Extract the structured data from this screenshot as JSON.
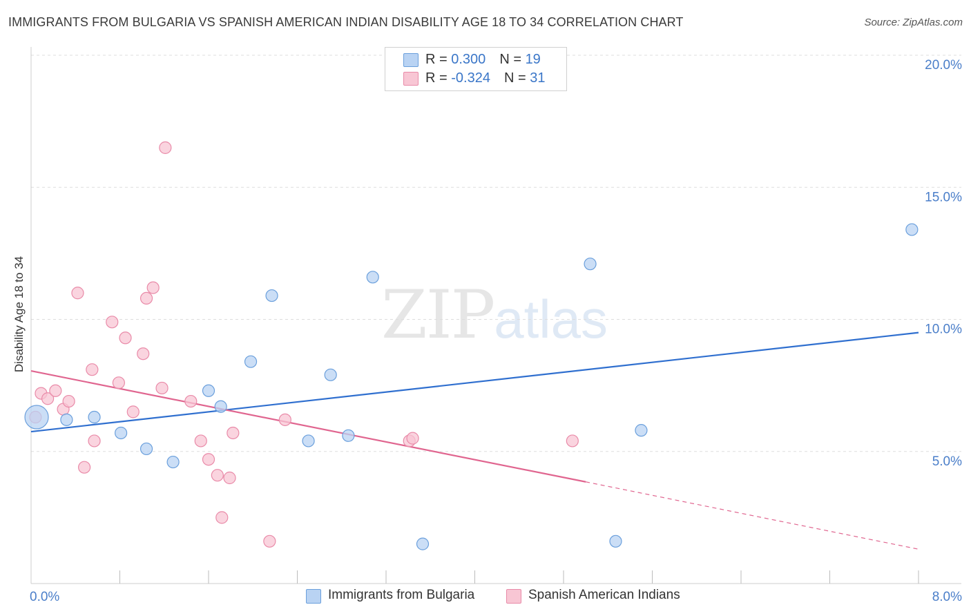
{
  "title": "IMMIGRANTS FROM BULGARIA VS SPANISH AMERICAN INDIAN DISABILITY AGE 18 TO 34 CORRELATION CHART",
  "source": "Source: ZipAtlas.com",
  "watermark": {
    "zip": "ZIP",
    "atlas": "atlas"
  },
  "legend": {
    "series1": {
      "r_label": "R = ",
      "r_value": "0.300",
      "n_label": "N = ",
      "n_value": "19"
    },
    "series2": {
      "r_label": "R = ",
      "r_value": "-0.324",
      "n_label": "N = ",
      "n_value": "31"
    }
  },
  "colors": {
    "blue_fill": "#b9d3f3",
    "blue_stroke": "#6a9fdc",
    "blue_line": "#2f6fcf",
    "pink_fill": "#f8c6d4",
    "pink_stroke": "#e98aa8",
    "pink_line": "#e0658f",
    "grid": "#dddddd",
    "tick_text": "#4a7ec9"
  },
  "chart_data": {
    "type": "scatter",
    "title": "IMMIGRANTS FROM BULGARIA VS SPANISH AMERICAN INDIAN DISABILITY AGE 18 TO 34 CORRELATION CHART",
    "xlabel": "",
    "ylabel": "Disability Age 18 to 34",
    "xlim": [
      0,
      8
    ],
    "ylim": [
      0,
      20.5
    ],
    "x_tick_labels": [
      "0.0%",
      "8.0%"
    ],
    "y_ticks": [
      5,
      10,
      15,
      20
    ],
    "y_tick_labels": [
      "5.0%",
      "10.0%",
      "15.0%",
      "20.0%"
    ],
    "series": [
      {
        "name": "Immigrants from Bulgaria",
        "color": "blue",
        "points": [
          [
            0.05,
            6.3
          ],
          [
            0.32,
            6.2
          ],
          [
            0.57,
            6.3
          ],
          [
            0.81,
            5.7
          ],
          [
            1.04,
            5.1
          ],
          [
            1.28,
            4.6
          ],
          [
            1.6,
            7.3
          ],
          [
            1.71,
            6.7
          ],
          [
            1.98,
            8.4
          ],
          [
            2.17,
            10.9
          ],
          [
            2.5,
            5.4
          ],
          [
            2.7,
            7.9
          ],
          [
            2.86,
            5.6
          ],
          [
            3.08,
            11.6
          ],
          [
            3.53,
            1.5
          ],
          [
            5.04,
            12.1
          ],
          [
            5.27,
            1.6
          ],
          [
            5.5,
            5.8
          ],
          [
            7.94,
            13.4
          ]
        ],
        "trend": {
          "x0": 0,
          "y0": 5.75,
          "x1": 8,
          "y1": 9.5
        }
      },
      {
        "name": "Spanish American Indians",
        "color": "pink",
        "points": [
          [
            0.04,
            6.3
          ],
          [
            0.09,
            7.2
          ],
          [
            0.15,
            7.0
          ],
          [
            0.22,
            7.3
          ],
          [
            0.29,
            6.6
          ],
          [
            0.34,
            6.9
          ],
          [
            0.42,
            11.0
          ],
          [
            0.48,
            4.4
          ],
          [
            0.55,
            8.1
          ],
          [
            0.57,
            5.4
          ],
          [
            0.73,
            9.9
          ],
          [
            0.79,
            7.6
          ],
          [
            0.85,
            9.3
          ],
          [
            0.92,
            6.5
          ],
          [
            1.01,
            8.7
          ],
          [
            1.04,
            10.8
          ],
          [
            1.1,
            11.2
          ],
          [
            1.18,
            7.4
          ],
          [
            1.21,
            16.5
          ],
          [
            1.44,
            6.9
          ],
          [
            1.53,
            5.4
          ],
          [
            1.6,
            4.7
          ],
          [
            1.68,
            4.1
          ],
          [
            1.72,
            2.5
          ],
          [
            1.79,
            4.0
          ],
          [
            1.82,
            5.7
          ],
          [
            2.15,
            1.6
          ],
          [
            2.29,
            6.2
          ],
          [
            3.41,
            5.4
          ],
          [
            3.44,
            5.5
          ],
          [
            4.88,
            5.4
          ]
        ],
        "trend": {
          "x0": 0,
          "y0": 8.05,
          "x1": 5.0,
          "y1": 3.85,
          "dash_to_x": 8,
          "dash_to_y": 1.3
        }
      }
    ]
  },
  "bottom_legend": {
    "series1": "Immigrants from Bulgaria",
    "series2": "Spanish American Indians"
  }
}
